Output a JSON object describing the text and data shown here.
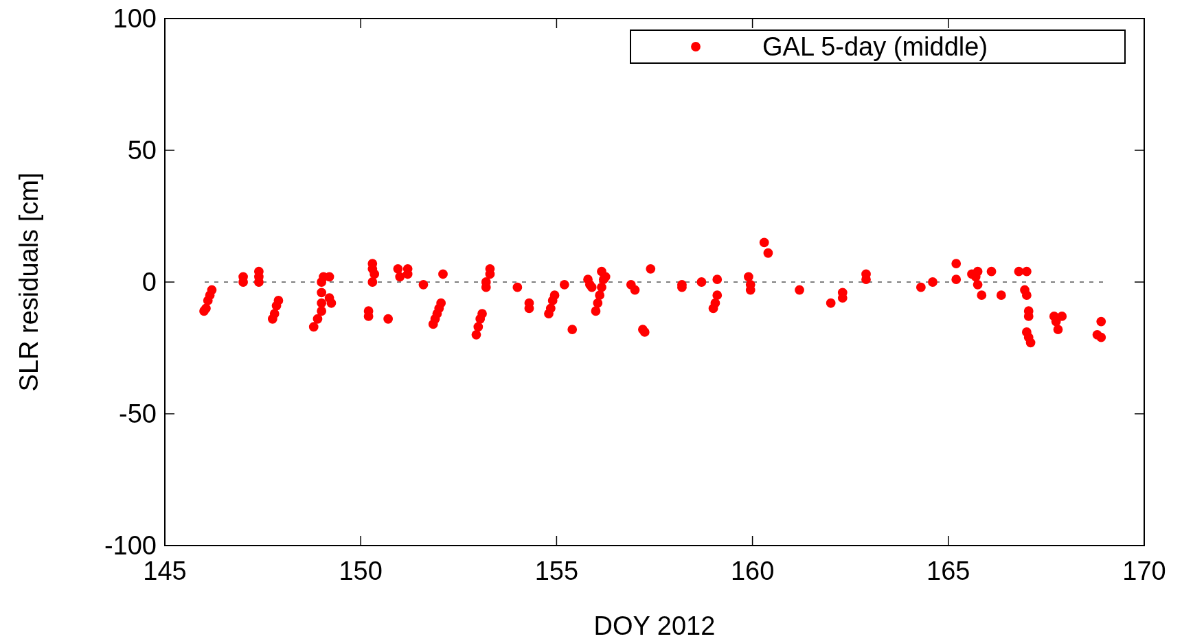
{
  "chart_data": {
    "type": "scatter",
    "xlabel": "DOY 2012",
    "ylabel": "SLR residuals [cm]",
    "xlim": [
      145,
      170
    ],
    "xticks": [
      145,
      150,
      155,
      160,
      165,
      170
    ],
    "ylim": [
      -100,
      100
    ],
    "yticks": [
      -100,
      -50,
      0,
      50,
      100
    ],
    "grid": false,
    "legend": "top right",
    "marker": "circle",
    "ref_lines": [
      {
        "axis": "y",
        "value": 0,
        "line_style": "dashed",
        "color": "#000000"
      }
    ],
    "series": [
      {
        "name": "GAL 5-day (middle)",
        "color": "#ff0000",
        "x": [
          146.0,
          146.05,
          146.1,
          146.15,
          146.2,
          147.0,
          147.0,
          147.4,
          147.4,
          147.4,
          147.75,
          147.8,
          147.85,
          147.9,
          148.8,
          148.9,
          149.0,
          149.0,
          149.0,
          149.0,
          149.05,
          149.2,
          149.25,
          149.2,
          150.2,
          150.2,
          150.3,
          150.3,
          150.35,
          150.3,
          150.7,
          150.95,
          151.0,
          151.2,
          151.2,
          151.6,
          151.85,
          151.9,
          151.95,
          152.0,
          152.05,
          152.1,
          152.95,
          153.0,
          153.05,
          153.1,
          153.2,
          153.2,
          153.3,
          153.3,
          154.0,
          154.3,
          154.3,
          154.8,
          154.85,
          154.9,
          154.95,
          155.2,
          155.4,
          155.8,
          155.85,
          155.9,
          156.0,
          156.05,
          156.1,
          156.15,
          156.2,
          156.15,
          156.25,
          156.9,
          157.0,
          157.2,
          157.25,
          157.4,
          158.2,
          158.2,
          158.7,
          159.0,
          159.05,
          159.1,
          159.1,
          159.9,
          159.95,
          159.95,
          160.3,
          160.4,
          161.2,
          162.0,
          162.3,
          162.3,
          162.9,
          162.9,
          164.3,
          164.6,
          165.2,
          165.2,
          165.6,
          165.7,
          165.75,
          165.75,
          165.85,
          166.1,
          166.35,
          166.8,
          167.0,
          166.95,
          167.0,
          167.05,
          167.05,
          167.0,
          167.05,
          167.1,
          167.7,
          167.75,
          167.8,
          167.9,
          168.8,
          168.9,
          168.9
        ],
        "values": [
          -11,
          -10,
          -7,
          -5,
          -3,
          2,
          0,
          4,
          2,
          0,
          -14,
          -12,
          -9,
          -7,
          -17,
          -14,
          -11,
          -8,
          -4,
          0,
          2,
          -6,
          -8,
          2,
          -11,
          -13,
          7,
          5,
          3,
          0,
          -14,
          5,
          2,
          5,
          3,
          -1,
          -16,
          -14,
          -12,
          -10,
          -8,
          3,
          -20,
          -17,
          -14,
          -12,
          0,
          -2,
          5,
          3,
          -2,
          -8,
          -10,
          -12,
          -10,
          -7,
          -5,
          -1,
          -18,
          1,
          -1,
          -2,
          -11,
          -8,
          -5,
          -2,
          1,
          4,
          2,
          -1,
          -3,
          -18,
          -19,
          5,
          -1,
          -2,
          0,
          -10,
          -8,
          -5,
          1,
          2,
          -1,
          -3,
          15,
          11,
          -3,
          -8,
          -4,
          -6,
          3,
          1,
          -2,
          0,
          7,
          1,
          3,
          2,
          -1,
          4,
          -5,
          4,
          -5,
          4,
          4,
          -3,
          -5,
          -11,
          -13,
          -19,
          -21,
          -23,
          -13,
          -15,
          -18,
          -13,
          -20,
          -21,
          -15
        ]
      }
    ]
  }
}
